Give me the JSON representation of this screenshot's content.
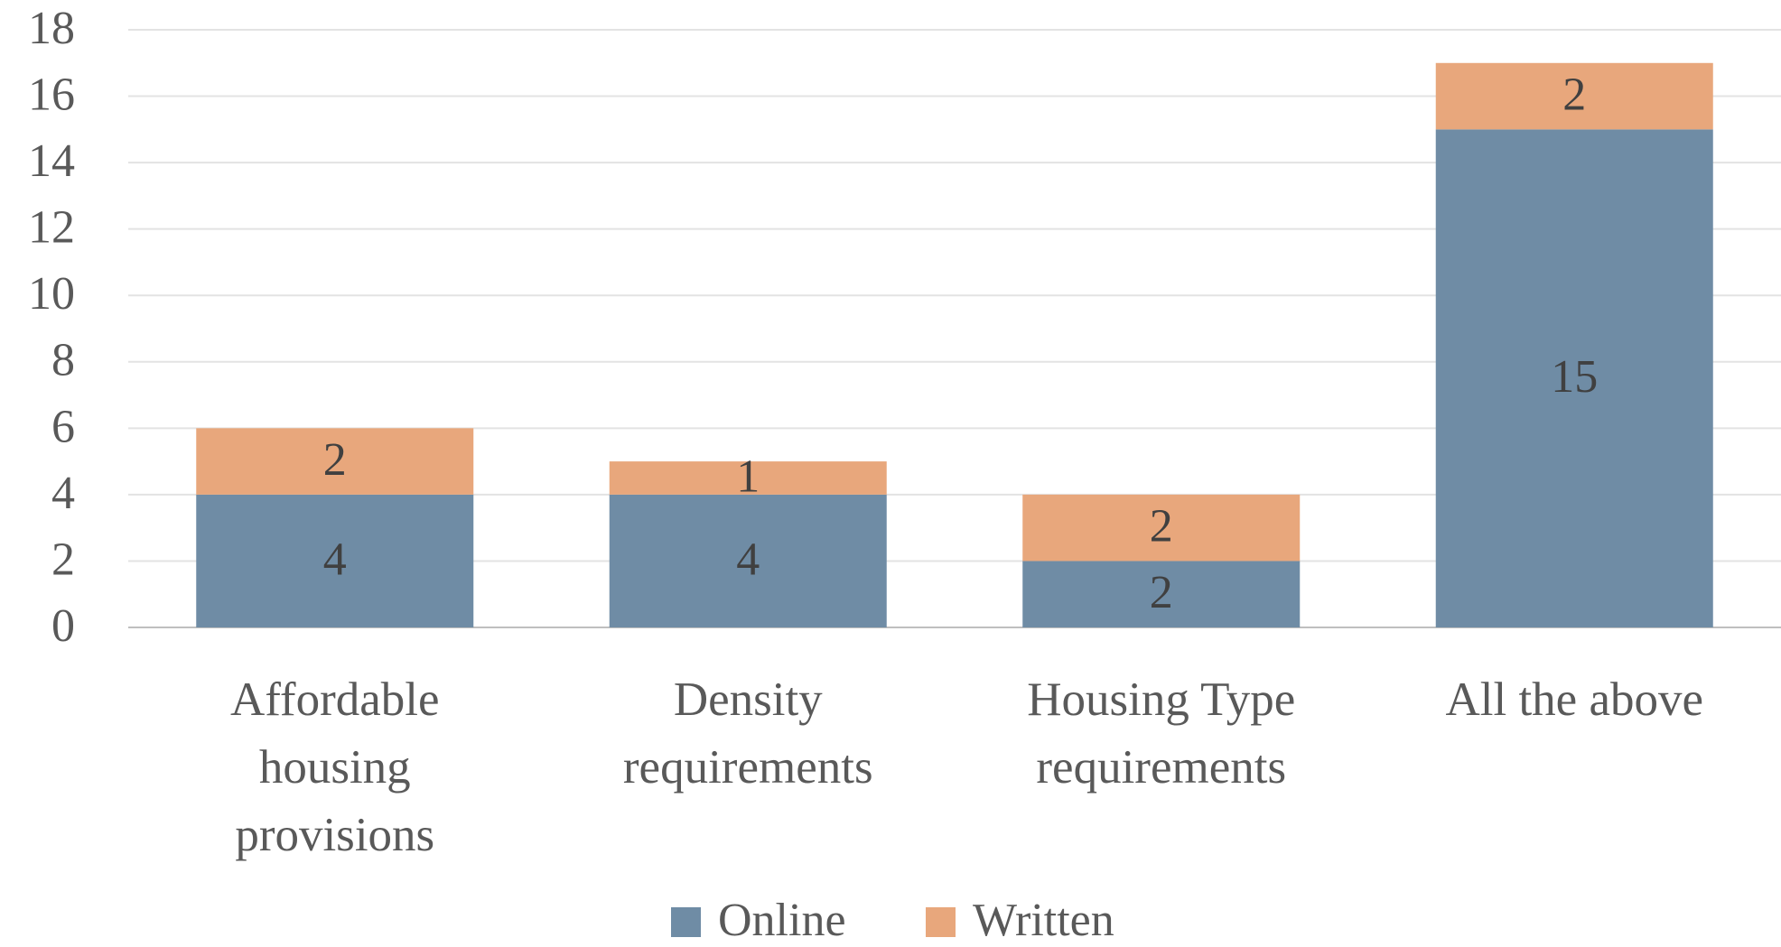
{
  "chart_data": {
    "type": "stacked_bar",
    "categories": [
      "Affordable housing provisions",
      "Density requirements",
      "Housing Type requirements",
      "All the above"
    ],
    "series": [
      {
        "name": "Online",
        "color": "#6f8ca5",
        "values": [
          4,
          4,
          2,
          15
        ]
      },
      {
        "name": "Written",
        "color": "#e8a77c",
        "values": [
          2,
          1,
          2,
          2
        ]
      }
    ],
    "ylim": [
      0,
      18
    ],
    "yticks": [
      0,
      2,
      4,
      6,
      8,
      10,
      12,
      14,
      16,
      18
    ],
    "grid": true,
    "legend": "bottom"
  }
}
